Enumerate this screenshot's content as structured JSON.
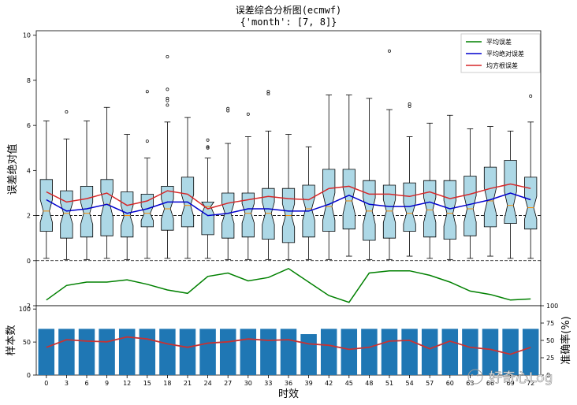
{
  "figure": {
    "title_line1": "误差综合分析图(ecmwf)",
    "title_line2": "{'month': [7, 8]}",
    "watermark": "好奇心Log"
  },
  "chart_data": [
    {
      "type": "box",
      "ylabel": "误差绝对值",
      "ylim": [
        -2,
        10.2
      ],
      "yticks": [
        -2,
        0,
        2,
        4,
        6,
        8,
        10
      ],
      "hlines": [
        0,
        2
      ],
      "x": [
        0,
        3,
        6,
        9,
        12,
        15,
        18,
        21,
        24,
        27,
        30,
        33,
        36,
        39,
        42,
        45,
        48,
        51,
        54,
        57,
        60,
        63,
        66,
        69,
        72
      ],
      "boxes": [
        {
          "wlo": 0.1,
          "q1": 1.3,
          "med": 2.2,
          "q3": 3.6,
          "whi": 6.2,
          "fl": []
        },
        {
          "wlo": 0.05,
          "q1": 1.0,
          "med": 2.1,
          "q3": 3.1,
          "whi": 5.4,
          "fl": [
            6.6
          ]
        },
        {
          "wlo": 0.05,
          "q1": 1.05,
          "med": 2.1,
          "q3": 3.3,
          "whi": 6.2,
          "fl": []
        },
        {
          "wlo": 0.1,
          "q1": 1.1,
          "med": 2.5,
          "q3": 3.6,
          "whi": 6.8,
          "fl": []
        },
        {
          "wlo": 0.05,
          "q1": 1.05,
          "med": 2.0,
          "q3": 3.05,
          "whi": 5.6,
          "fl": []
        },
        {
          "wlo": 0.1,
          "q1": 1.5,
          "med": 2.1,
          "q3": 2.95,
          "whi": 4.55,
          "fl": [
            5.3,
            7.5
          ]
        },
        {
          "wlo": 0.1,
          "q1": 1.35,
          "med": 2.3,
          "q3": 3.3,
          "whi": 6.15,
          "fl": [
            6.9,
            7.1,
            7.2,
            7.6,
            9.05
          ]
        },
        {
          "wlo": 0.1,
          "q1": 1.5,
          "med": 2.45,
          "q3": 3.7,
          "whi": 6.35,
          "fl": []
        },
        {
          "wlo": 0.1,
          "q1": 1.15,
          "med": 2.4,
          "q3": 2.6,
          "whi": 4.55,
          "fl": [
            5.0,
            5.05,
            5.35
          ]
        },
        {
          "wlo": 0.05,
          "q1": 1.0,
          "med": 2.1,
          "q3": 3.0,
          "whi": 5.2,
          "fl": [
            6.65,
            6.75
          ]
        },
        {
          "wlo": 0.05,
          "q1": 1.05,
          "med": 2.1,
          "q3": 3.0,
          "whi": 5.5,
          "fl": [
            6.5
          ]
        },
        {
          "wlo": 0.05,
          "q1": 0.95,
          "med": 2.1,
          "q3": 3.2,
          "whi": 5.75,
          "fl": [
            7.4,
            7.5
          ]
        },
        {
          "wlo": 0.05,
          "q1": 0.8,
          "med": 2.0,
          "q3": 3.2,
          "whi": 5.6,
          "fl": []
        },
        {
          "wlo": 0.05,
          "q1": 1.05,
          "med": 2.3,
          "q3": 3.35,
          "whi": 5.05,
          "fl": []
        },
        {
          "wlo": 0.05,
          "q1": 1.3,
          "med": 2.4,
          "q3": 4.05,
          "whi": 7.35,
          "fl": []
        },
        {
          "wlo": 0.2,
          "q1": 1.4,
          "med": 2.65,
          "q3": 4.05,
          "whi": 7.35,
          "fl": []
        },
        {
          "wlo": 0.05,
          "q1": 0.9,
          "med": 2.2,
          "q3": 3.55,
          "whi": 7.2,
          "fl": []
        },
        {
          "wlo": 0.05,
          "q1": 1.0,
          "med": 2.2,
          "q3": 3.35,
          "whi": 6.7,
          "fl": [
            9.3
          ]
        },
        {
          "wlo": 0.2,
          "q1": 1.3,
          "med": 2.1,
          "q3": 3.45,
          "whi": 5.5,
          "fl": [
            6.85,
            6.95
          ]
        },
        {
          "wlo": 0.1,
          "q1": 1.05,
          "med": 2.25,
          "q3": 3.55,
          "whi": 6.1,
          "fl": []
        },
        {
          "wlo": 0.05,
          "q1": 0.95,
          "med": 2.1,
          "q3": 3.55,
          "whi": 6.45,
          "fl": []
        },
        {
          "wlo": 0.1,
          "q1": 1.1,
          "med": 2.3,
          "q3": 3.75,
          "whi": 5.85,
          "fl": []
        },
        {
          "wlo": 0.2,
          "q1": 1.5,
          "med": 2.65,
          "q3": 4.15,
          "whi": 5.95,
          "fl": []
        },
        {
          "wlo": 0.1,
          "q1": 1.65,
          "med": 2.45,
          "q3": 4.45,
          "whi": 5.75,
          "fl": []
        },
        {
          "wlo": 0.1,
          "q1": 1.4,
          "med": 2.35,
          "q3": 3.7,
          "whi": 6.15,
          "fl": [
            7.3
          ]
        }
      ],
      "series": [
        {
          "name": "平均误差",
          "color": "#008000",
          "values": [
            -1.75,
            -1.1,
            -0.95,
            -0.95,
            -0.85,
            -1.05,
            -1.3,
            -1.45,
            -0.7,
            -0.55,
            -0.9,
            -0.75,
            -0.35,
            -0.95,
            -1.55,
            -1.85,
            -0.55,
            -0.45,
            -0.45,
            -0.65,
            -0.95,
            -1.35,
            -1.5,
            -1.75,
            -1.7
          ]
        },
        {
          "name": "平均绝对误差",
          "color": "#0000cd",
          "values": [
            2.7,
            2.2,
            2.3,
            2.5,
            2.1,
            2.3,
            2.6,
            2.6,
            2.0,
            2.1,
            2.3,
            2.3,
            2.2,
            2.2,
            2.5,
            2.9,
            2.5,
            2.4,
            2.4,
            2.6,
            2.3,
            2.5,
            2.7,
            3.0,
            2.7
          ]
        },
        {
          "name": "均方根误差",
          "color": "#d62728",
          "values": [
            3.05,
            2.6,
            2.75,
            3.0,
            2.45,
            2.65,
            3.1,
            2.95,
            2.3,
            2.55,
            2.7,
            2.85,
            2.75,
            2.7,
            3.2,
            3.3,
            2.95,
            2.95,
            2.85,
            3.05,
            2.75,
            2.95,
            3.2,
            3.4,
            3.2
          ]
        }
      ],
      "legend_position": "top-right"
    },
    {
      "type": "bar",
      "xlabel": "时效",
      "ylabel": "样本数",
      "ylabel_right": "准确率(%)",
      "ylim": [
        0,
        105
      ],
      "yticks": [
        0,
        50,
        100
      ],
      "ylim_right": [
        0,
        100
      ],
      "yticks_right": [
        0,
        25,
        50,
        75,
        100
      ],
      "categories": [
        "0",
        "3",
        "6",
        "9",
        "12",
        "15",
        "18",
        "21",
        "24",
        "27",
        "30",
        "33",
        "36",
        "39",
        "42",
        "45",
        "48",
        "51",
        "54",
        "57",
        "60",
        "63",
        "66",
        "69",
        "72"
      ],
      "xtick_labels": [
        "0",
        "3",
        "6",
        "9",
        "12",
        "15",
        "18",
        "21",
        "24",
        "27",
        "30",
        "33",
        "36",
        "39",
        "42",
        "45",
        "48",
        "51",
        "54",
        "57",
        "60",
        "63",
        "66",
        "69",
        "72"
      ],
      "series": [
        {
          "name": "样本数",
          "color": "#1f77b4",
          "values": [
            70,
            70,
            70,
            70,
            70,
            70,
            70,
            70,
            70,
            70,
            70,
            70,
            70,
            62,
            70,
            70,
            70,
            70,
            70,
            70,
            70,
            70,
            70,
            70,
            70
          ]
        },
        {
          "name": "准确率",
          "color": "#c83232",
          "values": [
            40,
            51,
            49,
            48,
            55,
            52,
            45,
            40,
            46,
            48,
            52,
            50,
            51,
            45,
            43,
            37,
            40,
            49,
            50,
            38,
            49,
            40,
            37,
            30,
            40
          ]
        }
      ]
    }
  ]
}
